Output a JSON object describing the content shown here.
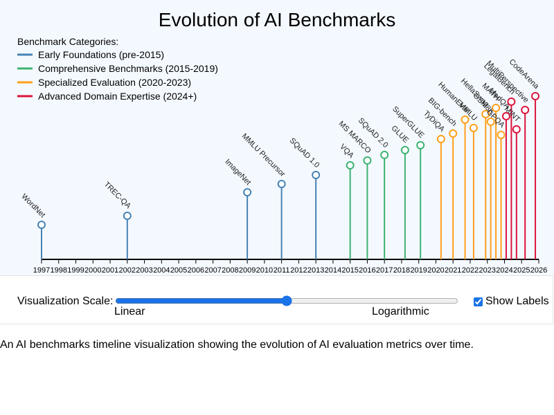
{
  "chart_data": {
    "type": "timeline",
    "title": "Evolution of AI Benchmarks",
    "x_axis": {
      "range": [
        1997,
        2026
      ],
      "ticks": [
        1997,
        1998,
        1999,
        2000,
        2001,
        2002,
        2003,
        2004,
        2005,
        2006,
        2007,
        2008,
        2009,
        2010,
        2011,
        2012,
        2013,
        2014,
        2015,
        2016,
        2017,
        2018,
        2019,
        2020,
        2021,
        2022,
        2023,
        2024,
        2025,
        2026
      ]
    },
    "legend": {
      "title": "Benchmark Categories:",
      "placement": "top-left",
      "items": [
        {
          "category": "early",
          "label": "Early Foundations (pre-2015)",
          "color": "#4682b4"
        },
        {
          "category": "comprehensive",
          "label": "Comprehensive Benchmarks (2015-2019)",
          "color": "#3cb371"
        },
        {
          "category": "specialized",
          "label": "Specialized Evaluation (2020-2023)",
          "color": "#ff9f1a"
        },
        {
          "category": "advanced",
          "label": "Advanced Domain Expertise (2024+)",
          "color": "#dc143c"
        }
      ]
    },
    "points": [
      {
        "name": "WordNet",
        "x": 1997.0,
        "height": 50,
        "category": "early"
      },
      {
        "name": "TREC-QA",
        "x": 2002.0,
        "height": 63,
        "category": "early"
      },
      {
        "name": "ImageNet",
        "x": 2009.0,
        "height": 97,
        "category": "early"
      },
      {
        "name": "MMLU Precursor",
        "x": 2011.0,
        "height": 109,
        "category": "early"
      },
      {
        "name": "SQuAD 1.0",
        "x": 2013.0,
        "height": 122,
        "category": "early"
      },
      {
        "name": "VQA",
        "x": 2015.0,
        "height": 136,
        "category": "comprehensive"
      },
      {
        "name": "MS MARCO",
        "x": 2016.0,
        "height": 143,
        "category": "comprehensive"
      },
      {
        "name": "SQuAD 2.0",
        "x": 2017.0,
        "height": 151,
        "category": "comprehensive"
      },
      {
        "name": "GLUE",
        "x": 2018.2,
        "height": 158,
        "category": "comprehensive"
      },
      {
        "name": "SuperGLUE",
        "x": 2019.1,
        "height": 165,
        "category": "comprehensive"
      },
      {
        "name": "TyDiQA",
        "x": 2020.3,
        "height": 174,
        "category": "specialized"
      },
      {
        "name": "BIG-bench",
        "x": 2021.0,
        "height": 182,
        "category": "specialized"
      },
      {
        "name": "HumanEval",
        "x": 2021.7,
        "height": 202,
        "category": "specialized"
      },
      {
        "name": "MMLU",
        "x": 2022.2,
        "height": 190,
        "category": "specialized"
      },
      {
        "name": "HellaSwag",
        "x": 2022.9,
        "height": 210,
        "category": "specialized"
      },
      {
        "name": "GSM8K",
        "x": 2023.2,
        "height": 199,
        "category": "specialized"
      },
      {
        "name": "MATH",
        "x": 2023.5,
        "height": 219,
        "category": "specialized"
      },
      {
        "name": "GPQA",
        "x": 2023.8,
        "height": 180,
        "category": "specialized"
      },
      {
        "name": "MedQA",
        "x": 2024.1,
        "height": 207,
        "category": "advanced"
      },
      {
        "name": "LegalBench",
        "x": 2024.4,
        "height": 228,
        "category": "advanced"
      },
      {
        "name": "MINT",
        "x": 2024.7,
        "height": 188,
        "category": "advanced"
      },
      {
        "name": "MultiPerspective",
        "x": 2025.2,
        "height": 216,
        "category": "advanced"
      },
      {
        "name": "CodeArena",
        "x": 2025.8,
        "height": 236,
        "category": "advanced"
      }
    ]
  },
  "controls": {
    "scale_label": "Visualization Scale:",
    "scale_value": 50,
    "scale_min_label": "Linear",
    "scale_max_label": "Logarithmic",
    "show_labels_label": "Show Labels",
    "show_labels_checked": true
  },
  "caption": "An AI benchmarks timeline visualization showing the evolution of AI evaluation metrics over time."
}
